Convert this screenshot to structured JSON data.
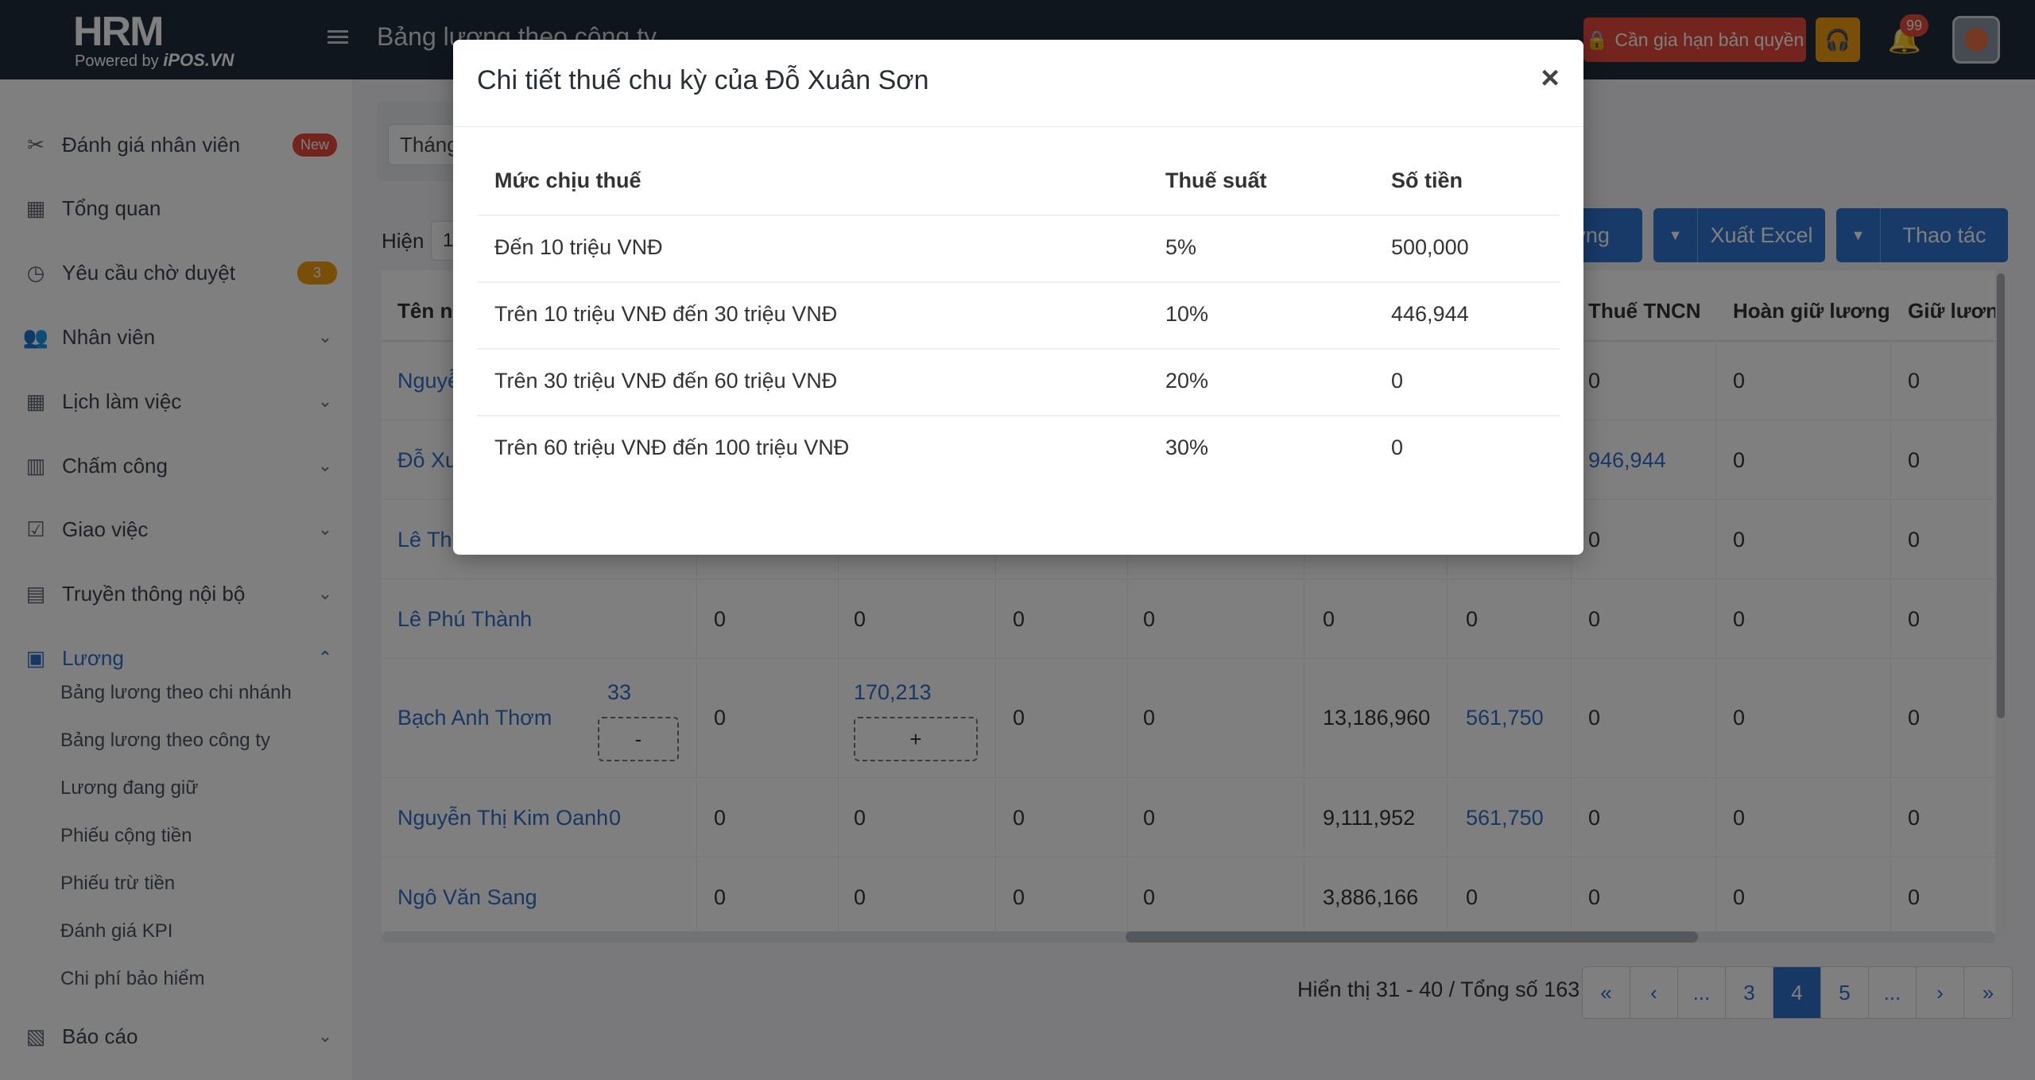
{
  "topbar": {
    "logo_main": "HRM",
    "logo_sub_prefix": "Powered by",
    "logo_sub_brand": "iPOS.VN",
    "page_title": "Bảng lương theo công ty",
    "license_button": "Cần gia hạn bản quyền",
    "notification_count": "99"
  },
  "sidebar": {
    "items": [
      {
        "label": "Đánh giá nhân viên",
        "badge": "New",
        "icon": "review-icon"
      },
      {
        "label": "Tổng quan",
        "icon": "calendar-icon"
      },
      {
        "label": "Yêu cầu chờ duyệt",
        "badge": "3",
        "icon": "clock-icon"
      },
      {
        "label": "Nhân viên",
        "icon": "users-icon"
      },
      {
        "label": "Lịch làm việc",
        "icon": "calendar-icon"
      },
      {
        "label": "Chấm công",
        "icon": "timesheet-icon"
      },
      {
        "label": "Giao việc",
        "icon": "clipboard-icon"
      },
      {
        "label": "Truyền thông nội bộ",
        "icon": "news-icon"
      },
      {
        "label": "Lương",
        "icon": "salary-icon"
      },
      {
        "label": "Báo cáo",
        "icon": "chart-icon"
      }
    ],
    "salary_sub": [
      "Bảng lương theo chi nhánh",
      "Bảng lương theo công ty",
      "Lương đang giữ",
      "Phiếu cộng tiền",
      "Phiếu trừ tiền",
      "Đánh giá KPI",
      "Chi phí bảo hiểm"
    ]
  },
  "main": {
    "filter_value": "Tháng",
    "show_label": "Hiện",
    "show_value": "1",
    "buttons": {
      "salary": "ương",
      "excel": "Xuất Excel",
      "actions": "Thao tác"
    },
    "table": {
      "headers": {
        "name": "Tên nh",
        "tax": "Thuế TNCN",
        "refund": "Hoàn giữ lương",
        "hold": "Giữ lương"
      },
      "rows": [
        {
          "name": "Nguyễ",
          "tax": "0",
          "refund": "0",
          "hold": "0"
        },
        {
          "name": "Đỗ Xu",
          "tax": "946,944",
          "refund": "0",
          "hold": "0"
        },
        {
          "name": "Lê Thị",
          "tax": "0",
          "refund": "0",
          "hold": "0"
        },
        {
          "name": "Lê Phú Thành",
          "c1": "0",
          "c2": "0",
          "c3": "0",
          "c4": "0",
          "c5": "0",
          "c6": "0",
          "tax": "0",
          "refund": "0",
          "hold": "0"
        },
        {
          "name": "Bạch Anh Thơm",
          "c0": "33",
          "c0btn": "-",
          "c1": "0",
          "c2": "170,213",
          "c2btn": "+",
          "c3": "0",
          "c4": "0",
          "c5": "13,186,960",
          "c6": "561,750",
          "tax": "0",
          "refund": "0",
          "hold": "0"
        },
        {
          "name": "Nguyễn Thị Kim Oanh",
          "c0": "0",
          "c1": "0",
          "c2": "0",
          "c3": "0",
          "c4": "0",
          "c5": "9,111,952",
          "c6": "561,750",
          "tax": "0",
          "refund": "0",
          "hold": "0"
        },
        {
          "name": "Ngô Văn Sang",
          "c1": "0",
          "c2": "0",
          "c3": "0",
          "c4": "0",
          "c5": "3,886,166",
          "c6": "0",
          "tax": "0",
          "refund": "0",
          "hold": "0"
        }
      ]
    },
    "pagination": {
      "info": "Hiển thị 31 - 40 / Tổng số 163",
      "pages": [
        "«",
        "‹",
        "...",
        "3",
        "4",
        "5",
        "...",
        "›",
        "»"
      ],
      "current": "4"
    }
  },
  "modal": {
    "title": "Chi tiết thuế chu kỳ của Đỗ Xuân Sơn",
    "close": "×",
    "headers": [
      "Mức chịu thuế",
      "Thuế suất",
      "Số tiền"
    ],
    "rows": [
      {
        "level": "Đến 10 triệu VNĐ",
        "rate": "5%",
        "amount": "500,000"
      },
      {
        "level": "Trên 10 triệu VNĐ đến 30 triệu VNĐ",
        "rate": "10%",
        "amount": "446,944"
      },
      {
        "level": "Trên 30 triệu VNĐ đến 60 triệu VNĐ",
        "rate": "20%",
        "amount": "0"
      },
      {
        "level": "Trên 60 triệu VNĐ đến 100 triệu VNĐ",
        "rate": "30%",
        "amount": "0"
      }
    ]
  },
  "colors": {
    "primary": "#2e6fcb",
    "topbar": "#1f2d3d",
    "danger": "#e5483a",
    "warning": "#f39c12"
  }
}
